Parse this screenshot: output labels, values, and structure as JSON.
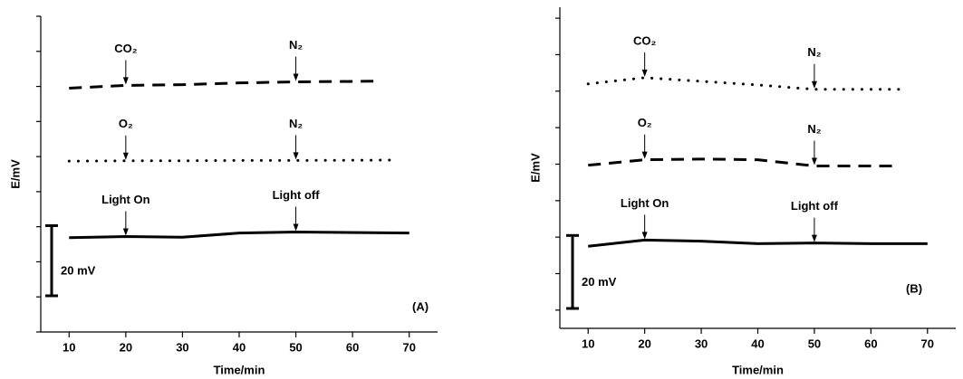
{
  "chart_data": [
    {
      "type": "line",
      "panel_label": "(A)",
      "x_label": "Time/min",
      "y_label": "E/mV",
      "xlim": [
        5,
        75
      ],
      "xticks": [
        10,
        20,
        30,
        40,
        50,
        60,
        70
      ],
      "ylim": [
        0,
        90
      ],
      "yticks": [
        0,
        10,
        20,
        30,
        40,
        50,
        60,
        70,
        80,
        90
      ],
      "scale_bar": {
        "label": "20 mV",
        "length": 20
      },
      "series": [
        {
          "color": "#000000",
          "style": "dashed",
          "x": [
            10,
            20,
            30,
            40,
            50,
            65
          ],
          "values": [
            69.5,
            70.3,
            70.5,
            71,
            71.3,
            71.5
          ],
          "markers": [
            {
              "label": "CO₂",
              "x": 20
            },
            {
              "label": "N₂",
              "x": 50
            }
          ]
        },
        {
          "color": "#000000",
          "style": "dotted",
          "x": [
            10,
            20,
            30,
            40,
            50,
            68
          ],
          "values": [
            48.7,
            48.8,
            48.8,
            48.9,
            48.9,
            49
          ]
        },
        {
          "color": "#000000",
          "style": "solid",
          "x": [
            10,
            20,
            30,
            40,
            50,
            70
          ],
          "values": [
            26.9,
            27.2,
            27,
            28.2,
            28.5,
            28.2
          ],
          "markers": [
            {
              "label": "Light On",
              "x": 20
            },
            {
              "label": "Light off",
              "x": 50
            }
          ]
        }
      ],
      "extra_markers": [
        {
          "label": "O₂",
          "x": 20
        },
        {
          "label": "N₂",
          "x": 50
        }
      ]
    },
    {
      "type": "line",
      "panel_label": "(B)",
      "x_label": "Time/min",
      "y_label": "E/mV",
      "xlim": [
        5,
        75
      ],
      "xticks": [
        10,
        20,
        30,
        40,
        50,
        60,
        70
      ],
      "ylim": [
        0,
        88
      ],
      "yticks": [
        5,
        15,
        25,
        35,
        45,
        55,
        65,
        75,
        85
      ],
      "scale_bar": {
        "label": "20 mV",
        "length": 20
      },
      "series": [
        {
          "color": "#000000",
          "style": "dotted",
          "x": [
            10,
            20,
            30,
            40,
            50,
            65
          ],
          "values": [
            67,
            68.7,
            67.7,
            66.7,
            65.5,
            65.5
          ],
          "markers": [
            {
              "label": "CO₂",
              "x": 20
            },
            {
              "label": "N₂",
              "x": 50
            }
          ]
        },
        {
          "color": "#000000",
          "style": "dashed",
          "x": [
            10,
            20,
            30,
            40,
            50,
            65
          ],
          "values": [
            44.7,
            46.2,
            46.4,
            46.2,
            44.5,
            44.5
          ],
          "markers": [
            {
              "label": "O₂",
              "x": 20
            },
            {
              "label": "N₂",
              "x": 50
            }
          ]
        },
        {
          "color": "#000000",
          "style": "solid",
          "x": [
            10,
            20,
            30,
            40,
            50,
            60,
            70
          ],
          "values": [
            22.5,
            24.2,
            23.9,
            23.2,
            23.4,
            23.2,
            23.2
          ],
          "markers": [
            {
              "label": "Light On",
              "x": 20
            },
            {
              "label": "Light off",
              "x": 50
            }
          ]
        }
      ]
    }
  ]
}
